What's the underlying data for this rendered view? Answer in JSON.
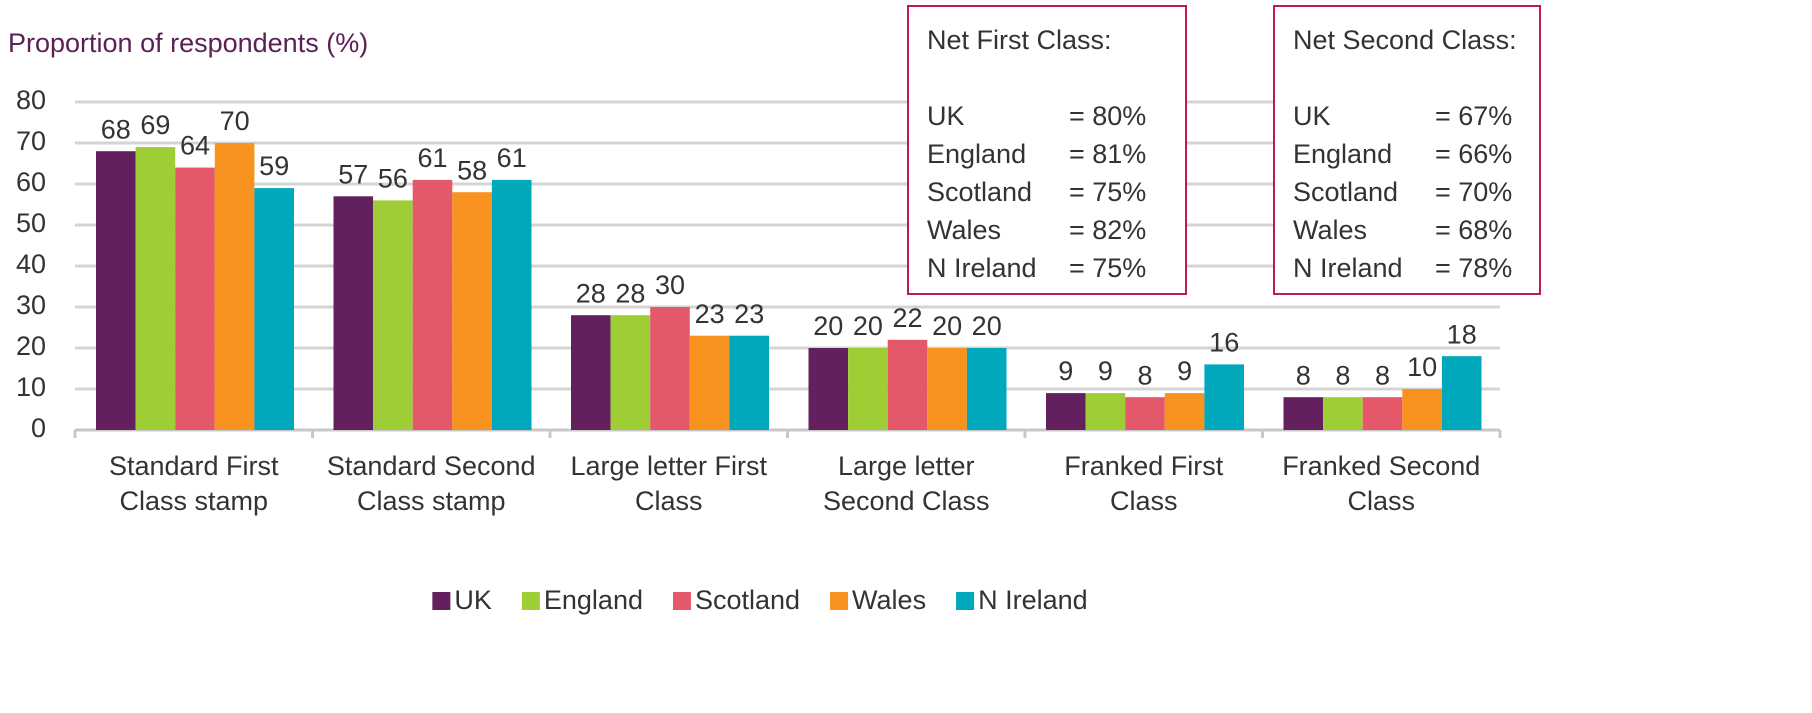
{
  "chart_data": {
    "type": "bar",
    "y_axis_label": "Proportion of respondents (%)",
    "categories": [
      "Standard First Class stamp",
      "Standard Second Class stamp",
      "Large letter First Class",
      "Large letter Second Class",
      "Franked First Class",
      "Franked Second Class"
    ],
    "series": [
      {
        "name": "UK",
        "color": "#62215e",
        "values": [
          68,
          57,
          28,
          20,
          9,
          8
        ]
      },
      {
        "name": "England",
        "color": "#9fcd36",
        "values": [
          69,
          56,
          28,
          20,
          9,
          8
        ]
      },
      {
        "name": "Scotland",
        "color": "#e5586a",
        "values": [
          64,
          61,
          30,
          22,
          8,
          8
        ]
      },
      {
        "name": "Wales",
        "color": "#f7931e",
        "values": [
          70,
          58,
          23,
          20,
          9,
          10
        ]
      },
      {
        "name": "N Ireland",
        "color": "#00a8bc",
        "values": [
          59,
          61,
          23,
          20,
          16,
          18
        ]
      }
    ],
    "ylim": [
      0,
      80
    ],
    "yticks": [
      0,
      10,
      20,
      30,
      40,
      50,
      60,
      70,
      80
    ],
    "grid": true,
    "legend": "bottom",
    "annotations": [
      {
        "title": "Net First Class:",
        "rows": [
          {
            "label": "UK",
            "value": "= 80%"
          },
          {
            "label": "England",
            "value": "= 81%"
          },
          {
            "label": "Scotland",
            "value": "= 75%"
          },
          {
            "label": "Wales",
            "value": "= 82%"
          },
          {
            "label": "N Ireland",
            "value": "= 75%"
          }
        ]
      },
      {
        "title": "Net Second Class:",
        "rows": [
          {
            "label": "UK",
            "value": "= 67%"
          },
          {
            "label": "England",
            "value": "= 66%"
          },
          {
            "label": "Scotland",
            "value": "= 70%"
          },
          {
            "label": "Wales",
            "value": "= 68%"
          },
          {
            "label": "N Ireland",
            "value": "= 78%"
          }
        ]
      }
    ]
  }
}
